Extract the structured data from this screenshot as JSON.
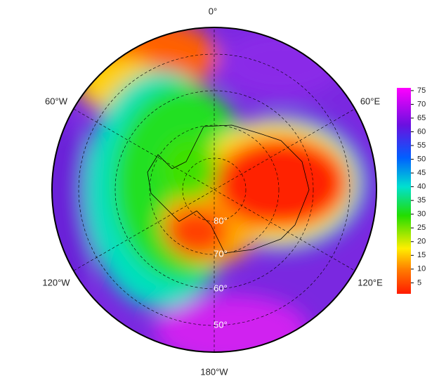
{
  "map": {
    "longitude_labels": [
      "0°",
      "60°W",
      "60°E",
      "120°W",
      "120°E",
      "180°W"
    ],
    "latitude_labels": [
      "80°",
      "70°",
      "60°",
      "50°"
    ]
  },
  "colorbar": {
    "ticks": [
      5,
      10,
      15,
      20,
      25,
      30,
      35,
      40,
      45,
      50,
      55,
      60,
      65,
      70,
      75
    ],
    "lim": [
      1,
      76
    ]
  }
}
